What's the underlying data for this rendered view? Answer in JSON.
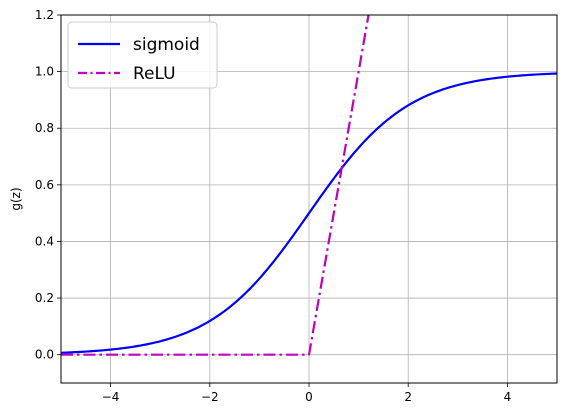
{
  "chart_data": {
    "type": "line",
    "title": "",
    "xlabel": "",
    "ylabel": "g(z)",
    "xlim": [
      -5,
      5
    ],
    "ylim": [
      -0.1,
      1.2
    ],
    "grid": true,
    "legend_position": "top-left",
    "xticks": [
      -4,
      -2,
      0,
      2,
      4
    ],
    "xtick_labels": [
      "−4",
      "−2",
      "0",
      "2",
      "4"
    ],
    "yticks": [
      0.0,
      0.2,
      0.4,
      0.6,
      0.8,
      1.0,
      1.2
    ],
    "ytick_labels": [
      "0.0",
      "0.2",
      "0.4",
      "0.6",
      "0.8",
      "1.0",
      "1.2"
    ],
    "series": [
      {
        "name": "sigmoid",
        "color": "#0000ff",
        "dash": "solid",
        "x": [
          -5,
          -4,
          -3,
          -2,
          -1,
          0,
          1,
          2,
          3,
          4,
          5
        ],
        "y": [
          0.0067,
          0.018,
          0.0474,
          0.1192,
          0.2689,
          0.5,
          0.7311,
          0.8808,
          0.9526,
          0.982,
          0.9933
        ]
      },
      {
        "name": "ReLU",
        "color": "#bf00bf",
        "dash": "dashdot",
        "x": [
          -5,
          0,
          1.2
        ],
        "y": [
          0,
          0,
          1.2
        ]
      }
    ]
  }
}
